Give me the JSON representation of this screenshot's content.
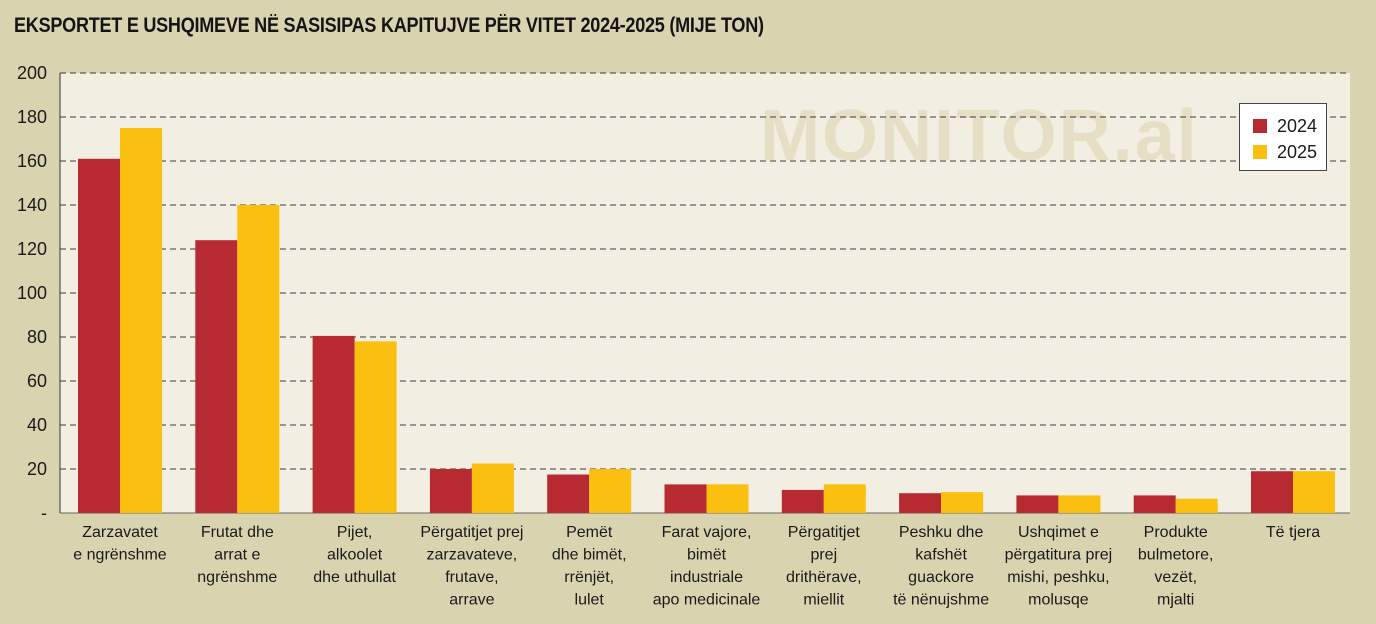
{
  "title": "EKSPORTET E USHQIMEVE NË SASISIPAS KAPITUJVE PËR VITET 2024-2025 (MIJE TON)",
  "watermark": "MONITOR.al",
  "colors": {
    "s2024": "#b82a31",
    "s2025": "#fbbf0f",
    "plot_bg": "#f2efe2",
    "frame_bg": "#d9d3b0"
  },
  "legend": [
    {
      "label": "2024",
      "color": "#b82a31"
    },
    {
      "label": "2025",
      "color": "#fbbf0f"
    }
  ],
  "chart_data": {
    "type": "bar",
    "title": "EKSPORTET E USHQIMEVE NË SASISIPAS KAPITUJVE PËR VITET 2024-2025 (MIJE TON)",
    "categories": [
      [
        "Zarzavatet",
        "e ngrënshme"
      ],
      [
        "Frutat dhe",
        "arrat e",
        "ngrënshme"
      ],
      [
        "Pijet,",
        "alkoolet",
        "dhe uthullat"
      ],
      [
        "Përgatitjet prej",
        "zarzavateve,",
        "frutave,",
        "arrave"
      ],
      [
        "Pemët",
        "dhe bimët,",
        "rrënjët,",
        "lulet"
      ],
      [
        "Farat vajore,",
        "bimët",
        "industriale",
        "apo medicinale"
      ],
      [
        "Përgatitjet",
        "prej",
        "drithërave,",
        "miellit"
      ],
      [
        "Peshku dhe",
        "kafshët",
        "guackore",
        "të nënujshme"
      ],
      [
        "Ushqimet e",
        "përgatitura prej",
        "mishi, peshku,",
        "molusqe"
      ],
      [
        "Produkte",
        "bulmetore,",
        "vezët,",
        "mjalti"
      ],
      [
        "Të tjera"
      ]
    ],
    "series": [
      {
        "name": "2024",
        "color": "#b82a31",
        "values": [
          161,
          124,
          80.5,
          20,
          17.5,
          13,
          10.5,
          9,
          8,
          8,
          19
        ]
      },
      {
        "name": "2025",
        "color": "#fbbf0f",
        "values": [
          175,
          140,
          78,
          22.5,
          20,
          13,
          13,
          9.5,
          8,
          6.5,
          19
        ]
      }
    ],
    "yticks": [
      "-",
      "20",
      "40",
      "60",
      "80",
      "100",
      "120",
      "140",
      "160",
      "180",
      "200"
    ],
    "ylim": [
      0,
      200
    ],
    "grid": true,
    "legend_position": "top-right"
  }
}
